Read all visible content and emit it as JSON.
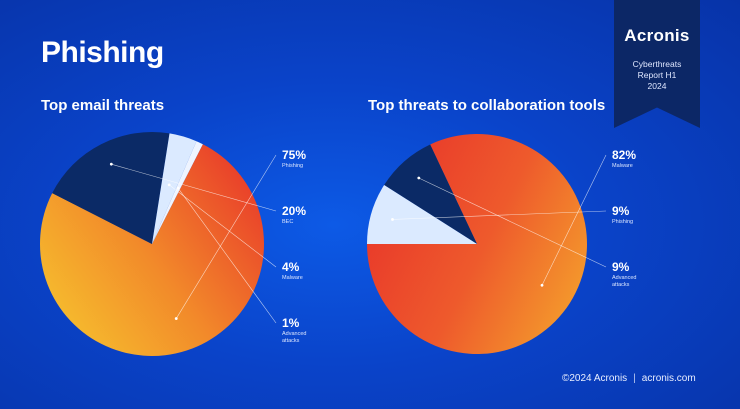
{
  "page": {
    "title": "Phishing"
  },
  "badge": {
    "logo": "Acronis",
    "line1": "Cyberthreats",
    "line2": "Report H1",
    "line3": "2024"
  },
  "footer": {
    "copyright": "©2024 Acronis",
    "separator": "|",
    "website": "acronis.com"
  },
  "colors": {
    "background": "#0a43c9",
    "orange_red": "#e8342a",
    "orange": "#f28a2a",
    "yellow": "#f6c02e",
    "navy": "#0b2a66",
    "light_blue": "#dbeaff",
    "pale": "#eef4ff"
  },
  "chart_data": [
    {
      "type": "pie",
      "title": "Top email threats",
      "slices": [
        {
          "label": "Phishing",
          "value": 75,
          "display": "75%",
          "color": "orange-gradient"
        },
        {
          "label": "BEC",
          "value": 20,
          "display": "20%",
          "color": "#0b2a66"
        },
        {
          "label": "Malware",
          "value": 4,
          "display": "4%",
          "color": "#dbeaff"
        },
        {
          "label": "Advanced attacks",
          "value": 1,
          "display": "1%",
          "color": "#eef4ff"
        }
      ]
    },
    {
      "type": "pie",
      "title": "Top threats to collaboration tools",
      "slices": [
        {
          "label": "Malware",
          "value": 82,
          "display": "82%",
          "color": "orange-gradient"
        },
        {
          "label": "Phishing",
          "value": 9,
          "display": "9%",
          "color": "#dbeaff"
        },
        {
          "label": "Advanced attacks",
          "value": 9,
          "display": "9%",
          "color": "#0b2a66"
        }
      ]
    }
  ]
}
